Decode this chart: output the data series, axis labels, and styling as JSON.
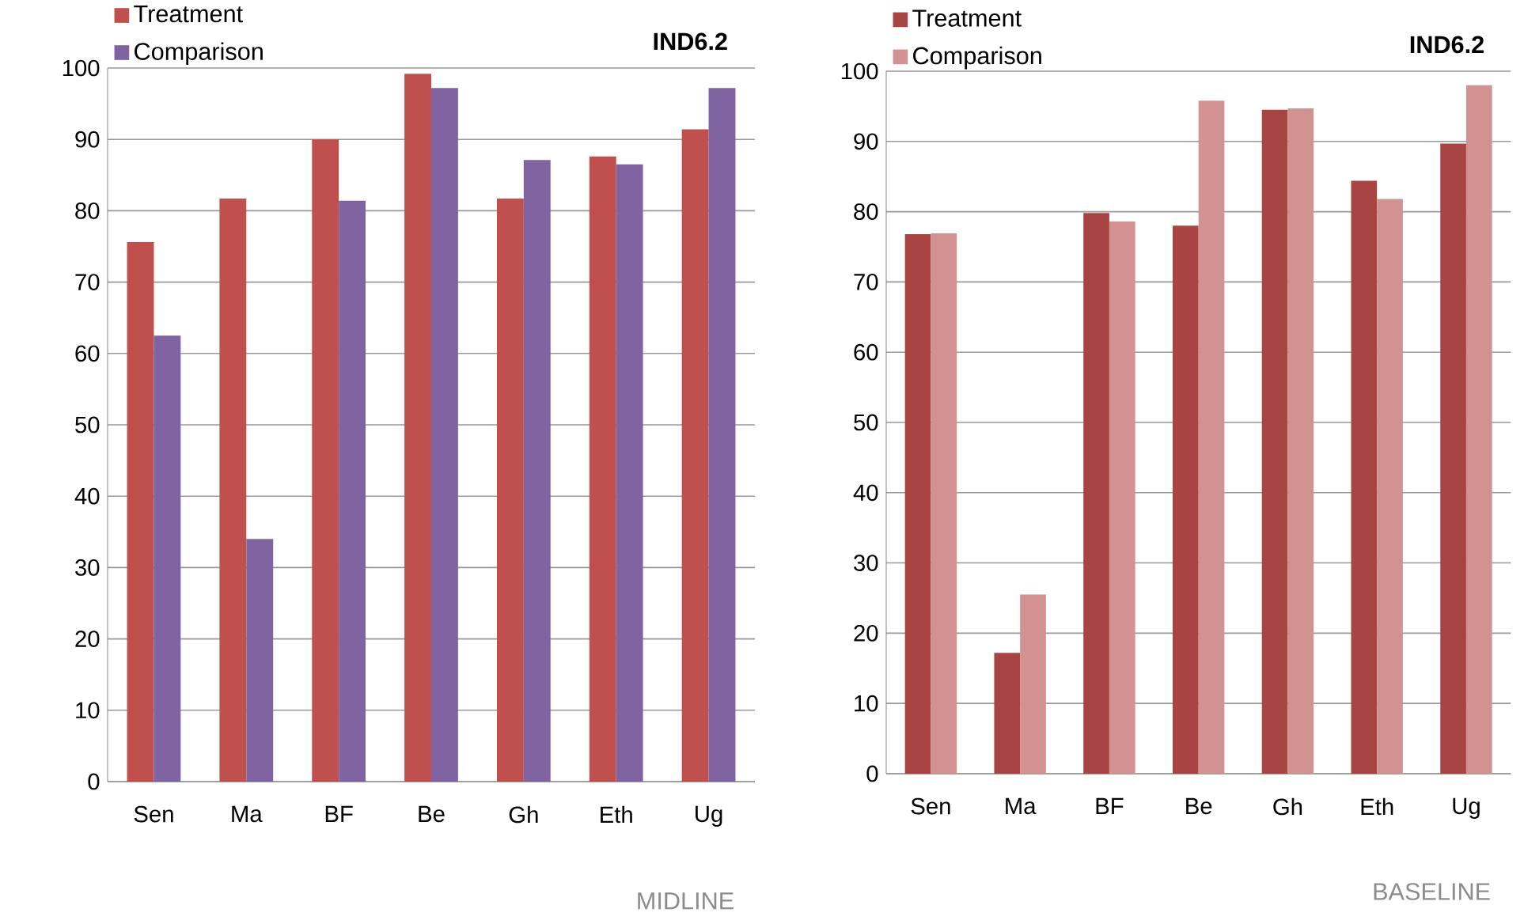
{
  "chart_data": [
    {
      "type": "bar",
      "title": "IND6.2",
      "annotations": [
        "MIDLINE"
      ],
      "categories": [
        "Sen",
        "Ma",
        "BF",
        "Be",
        "Gh",
        "Eth",
        "Ug"
      ],
      "series": [
        {
          "name": "Treatment",
          "color": "#c0504d",
          "values": [
            75.6,
            81.7,
            90.0,
            99.2,
            81.7,
            87.6,
            91.4
          ]
        },
        {
          "name": "Comparison",
          "color": "#8064a2",
          "values": [
            62.5,
            34.0,
            81.4,
            97.2,
            87.1,
            86.5,
            97.2
          ]
        }
      ],
      "ylim": [
        0,
        100
      ],
      "yticks": [
        0,
        10,
        20,
        30,
        40,
        50,
        60,
        70,
        80,
        90,
        100
      ],
      "grid": "y",
      "legend": "top left"
    },
    {
      "type": "bar",
      "title": "IND6.2",
      "annotations": [
        "BASELINE"
      ],
      "categories": [
        "Sen",
        "Ma",
        "BF",
        "Be",
        "Gh",
        "Eth",
        "Ug"
      ],
      "series": [
        {
          "name": "Treatment",
          "color": "#a84442",
          "values": [
            76.8,
            17.2,
            79.8,
            78.0,
            94.5,
            84.4,
            89.7
          ]
        },
        {
          "name": "Comparison",
          "color": "#d39292",
          "values": [
            76.9,
            25.5,
            78.6,
            95.8,
            94.7,
            81.8,
            98.0
          ]
        }
      ],
      "ylim": [
        0,
        100
      ],
      "yticks": [
        0,
        10,
        20,
        30,
        40,
        50,
        60,
        70,
        80,
        90,
        100
      ],
      "grid": "y",
      "legend": "top left"
    }
  ]
}
